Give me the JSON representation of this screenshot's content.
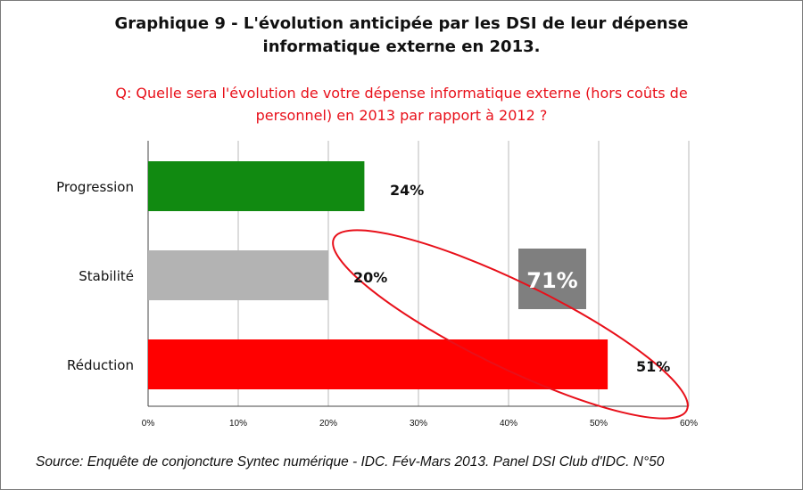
{
  "chart_data": {
    "type": "bar",
    "orientation": "horizontal",
    "title": "Graphique 9 - L'évolution anticipée par les DSI de leur dépense informatique externe en 2013.",
    "subtitle": "Q: Quelle sera l'évolution de votre dépense informatique externe (hors coûts de personnel) en 2013 par rapport à 2012 ?",
    "categories": [
      "Progression",
      "Stabilité",
      "Réduction"
    ],
    "values": [
      24,
      20,
      51
    ],
    "value_labels": [
      "24%",
      "20%",
      "51%"
    ],
    "colors": [
      "#118a11",
      "#b3b3b3",
      "#ff0000"
    ],
    "xlim": [
      0,
      60
    ],
    "xticks": [
      0,
      10,
      20,
      30,
      40,
      50,
      60
    ],
    "xtick_labels": [
      "0%",
      "10%",
      "20%",
      "30%",
      "40%",
      "50%",
      "60%"
    ],
    "grid": true,
    "annotation": {
      "text": "71%",
      "box_color": "#7f7f7f",
      "outline_color": "#e8101a",
      "groups": [
        "Stabilité",
        "Réduction"
      ]
    },
    "source": "Source: Enquête de conjoncture Syntec numérique - IDC. Fév-Mars 2013. Panel DSI Club d'IDC. N°50"
  }
}
